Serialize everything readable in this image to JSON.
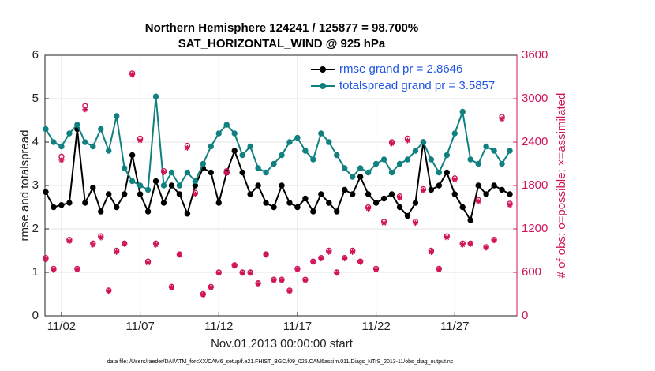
{
  "chart_data": {
    "type": "line",
    "title": "Northern Hemisphere 124241 / 125877 = 98.700%",
    "subtitle": "SAT_HORIZONTAL_WIND @ 925 hPa",
    "x_label": "Nov.01,2013 00:00:00 start",
    "y_label": "rmse and totalspread",
    "y2_label": "# of obs: o=possible; ×=assimilated",
    "footnote": "data file: /Users/raeder/DAI/ATM_forcXX/CAM6_setup/f.e21.FHIST_BGC.f09_025.CAM6assim.011/Diags_NTrS_2013-11/obs_diag_output.nc",
    "xlim": [
      0.95,
      30.95
    ],
    "xticks": [
      {
        "value": 2,
        "label": "11/02"
      },
      {
        "value": 7,
        "label": "11/07"
      },
      {
        "value": 12,
        "label": "11/12"
      },
      {
        "value": 17,
        "label": "11/17"
      },
      {
        "value": 22,
        "label": "11/22"
      },
      {
        "value": 27,
        "label": "11/27"
      }
    ],
    "ylim": [
      0,
      6
    ],
    "yticks": [
      0,
      1,
      2,
      3,
      4,
      5,
      6
    ],
    "y2lim": [
      0,
      3600
    ],
    "y2ticks": [
      0,
      600,
      1200,
      1800,
      2400,
      3000,
      3600
    ],
    "y2_color": "#d0145a",
    "grid": true,
    "legend_position": "upper right",
    "x": [
      1,
      1.5,
      2,
      2.5,
      3,
      3.5,
      4,
      4.5,
      5,
      5.5,
      6,
      6.5,
      7,
      7.5,
      8,
      8.5,
      9,
      9.5,
      10,
      10.5,
      11,
      11.5,
      12,
      12.5,
      13,
      13.5,
      14,
      14.5,
      15,
      15.5,
      16,
      16.5,
      17,
      17.5,
      18,
      18.5,
      19,
      19.5,
      20,
      20.5,
      21,
      21.5,
      22,
      22.5,
      23,
      23.5,
      24,
      24.5,
      25,
      25.5,
      26,
      26.5,
      27,
      27.5,
      28,
      28.5,
      29,
      29.5,
      30,
      30.5
    ],
    "series": [
      {
        "name": "rmse grand pr = 2.8646",
        "color": "#000000",
        "marker": "o",
        "values": [
          2.85,
          2.5,
          2.55,
          2.6,
          4.3,
          2.6,
          2.95,
          2.4,
          2.8,
          2.5,
          2.8,
          3.7,
          2.8,
          2.4,
          3.1,
          2.6,
          3.0,
          2.8,
          2.35,
          3.0,
          3.4,
          3.3,
          2.6,
          3.3,
          3.8,
          3.3,
          2.8,
          3.0,
          2.6,
          2.5,
          3.0,
          2.6,
          2.5,
          2.7,
          2.4,
          2.8,
          2.6,
          2.4,
          2.9,
          2.8,
          3.2,
          2.8,
          2.6,
          2.7,
          2.8,
          2.5,
          2.3,
          2.6,
          4.0,
          2.9,
          3.0,
          3.3,
          2.8,
          2.5,
          2.2,
          3.0,
          2.8,
          3.0,
          2.9,
          2.8
        ]
      },
      {
        "name": "totalspread grand pr = 3.5857",
        "color": "#118080",
        "marker": "o",
        "values": [
          4.3,
          4.0,
          3.9,
          4.2,
          4.4,
          4.0,
          3.9,
          4.3,
          3.8,
          4.6,
          3.4,
          3.1,
          3.0,
          2.9,
          5.05,
          3.0,
          3.3,
          3.0,
          3.3,
          3.1,
          3.5,
          3.9,
          4.2,
          4.4,
          4.2,
          3.7,
          3.9,
          3.4,
          3.3,
          3.5,
          3.7,
          4.0,
          4.1,
          3.8,
          3.6,
          4.2,
          4.0,
          3.7,
          3.4,
          3.2,
          3.4,
          3.3,
          3.5,
          3.6,
          3.3,
          3.5,
          3.6,
          3.8,
          4.0,
          3.6,
          3.3,
          3.7,
          4.2,
          4.7,
          3.6,
          3.5,
          3.9,
          3.8,
          3.5,
          3.8
        ]
      },
      {
        "color": "#d0145a",
        "marker": "o",
        "axis": "y2",
        "values": [
          800,
          650,
          2200,
          1050,
          650,
          2900,
          1000,
          1100,
          350,
          900,
          1000,
          3350,
          2450,
          750,
          1000,
          2000,
          400,
          850,
          2350,
          1700,
          300,
          400,
          600,
          2000,
          700,
          600,
          600,
          450,
          850,
          500,
          500,
          350,
          650,
          500,
          750,
          800,
          900,
          600,
          800,
          900,
          750,
          1500,
          650,
          1300,
          2400,
          1650,
          2450,
          1300,
          1750,
          900,
          650,
          1100,
          1900,
          1000,
          1000,
          1600,
          950,
          1050,
          2750,
          1550
        ]
      },
      {
        "color": "#d0145a",
        "marker": "*",
        "axis": "y2",
        "values": [
          780,
          630,
          2150,
          1030,
          640,
          2850,
          980,
          1080,
          340,
          880,
          990,
          3330,
          2420,
          730,
          980,
          1980,
          390,
          840,
          2320,
          1680,
          290,
          390,
          590,
          1970,
          690,
          590,
          590,
          440,
          840,
          490,
          490,
          340,
          640,
          490,
          740,
          790,
          880,
          590,
          790,
          880,
          740,
          1480,
          640,
          1280,
          2380,
          1630,
          2420,
          1280,
          1730,
          880,
          640,
          1080,
          1880,
          980,
          990,
          1580,
          940,
          1040,
          2720,
          1530
        ]
      }
    ]
  }
}
